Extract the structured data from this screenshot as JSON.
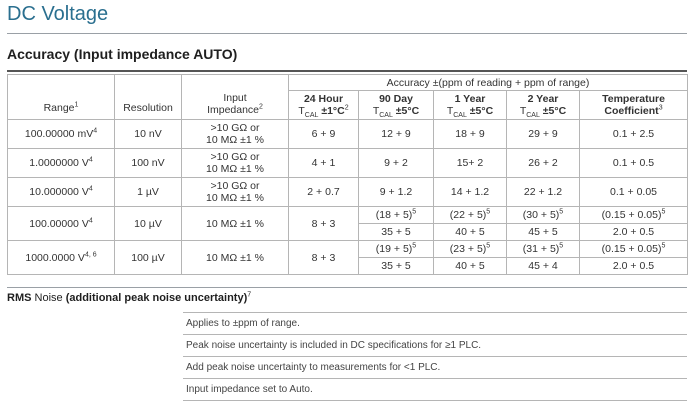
{
  "title": "DC Voltage",
  "section_title": "Accuracy (Input impedance AUTO)",
  "accuracy_band": "Accuracy ±(ppm of reading + ppm of range)",
  "headers": {
    "range": "Range",
    "range_sup": "1",
    "resolution": "Resolution",
    "input_l1": "Input",
    "input_l2": "Impedance",
    "input_sup": "2",
    "h24_l1": "24 Hour",
    "h24_t": "T",
    "h24_sub": "CAL",
    "h24_tol": " ±1°C",
    "h24_sup": "2",
    "d90_l1": "90 Day",
    "d90_t": "T",
    "d90_sub": "CAL",
    "d90_tol": " ±5°C",
    "y1_l1": "1 Year",
    "y1_t": "T",
    "y1_sub": "CAL",
    "y1_tol": " ±5°C",
    "y2_l1": "2 Year",
    "y2_t": "T",
    "y2_sub": "CAL",
    "y2_tol": " ±5°C",
    "tc_l1": "Temperature",
    "tc_l2": "Coefficient",
    "tc_sup": "3"
  },
  "rows": [
    {
      "range": "100.00000 mV",
      "range_sup": "4",
      "resolution": "10 nV",
      "imp1": ">10 GΩ or",
      "imp2": "10 MΩ ±1 %",
      "h24": "6 + 9",
      "d90": "12 + 9",
      "y1": "18 + 9",
      "y2": "29 + 9",
      "tc": "0.1 + 2.5"
    },
    {
      "range": "1.0000000 V",
      "range_sup": "4",
      "resolution": "100 nV",
      "imp1": ">10 GΩ or",
      "imp2": "10 MΩ ±1 %",
      "h24": "4 + 1",
      "d90": "9 + 2",
      "y1": "15+ 2",
      "y2": "26 + 2",
      "tc": "0.1 + 0.5"
    },
    {
      "range": "10.000000 V",
      "range_sup": "4",
      "resolution": "1 µV",
      "imp1": ">10 GΩ or",
      "imp2": "10 MΩ ±1 %",
      "h24": "2 + 0.7",
      "d90": "9 + 1.2",
      "y1": "14 + 1.2",
      "y2": "22 + 1.2",
      "tc": "0.1 + 0.05"
    },
    {
      "range": "100.00000 V",
      "range_sup": "4",
      "resolution": "10 µV",
      "imp": "10 MΩ ±1 %",
      "h24": "8 + 3",
      "d90a": "(18 + 5)",
      "d90a_sup": "5",
      "y1a": "(22 + 5)",
      "y1a_sup": "5",
      "y2a": "(30 + 5)",
      "y2a_sup": "5",
      "tca": "(0.15 + 0.05)",
      "tca_sup": "5",
      "d90b": "35 + 5",
      "y1b": "40 + 5",
      "y2b": "45 + 5",
      "tcb": "2.0 + 0.5"
    },
    {
      "range": "1000.0000 V",
      "range_sup": "4, 6",
      "resolution": "100 µV",
      "imp": "10 MΩ ±1 %",
      "h24": "8 + 3",
      "d90a": "(19 + 5)",
      "d90a_sup": "5",
      "y1a": "(23 + 5)",
      "y1a_sup": "5",
      "y2a": "(31 + 5)",
      "y2a_sup": "5",
      "tca": "(0.15 + 0.05)",
      "tca_sup": "5",
      "d90b": "35 + 5",
      "y1b": "40 + 5",
      "y2b": "45 + 4",
      "tcb": "2.0 + 0.5"
    }
  ],
  "rms": {
    "lead": "RMS",
    "mid": " Noise ",
    "paren": "(additional peak noise uncertainty)",
    "sup": "7"
  },
  "notes": [
    "Applies to ±ppm of range.",
    "Peak noise uncertainty is included in DC specifications for ≥1 PLC.",
    "Add peak noise uncertainty to measurements for <1 PLC.",
    "Input impedance set to Auto."
  ],
  "colors": {
    "title": "#2a6f8f",
    "grid": "#b5b5b5",
    "text": "#333333"
  }
}
